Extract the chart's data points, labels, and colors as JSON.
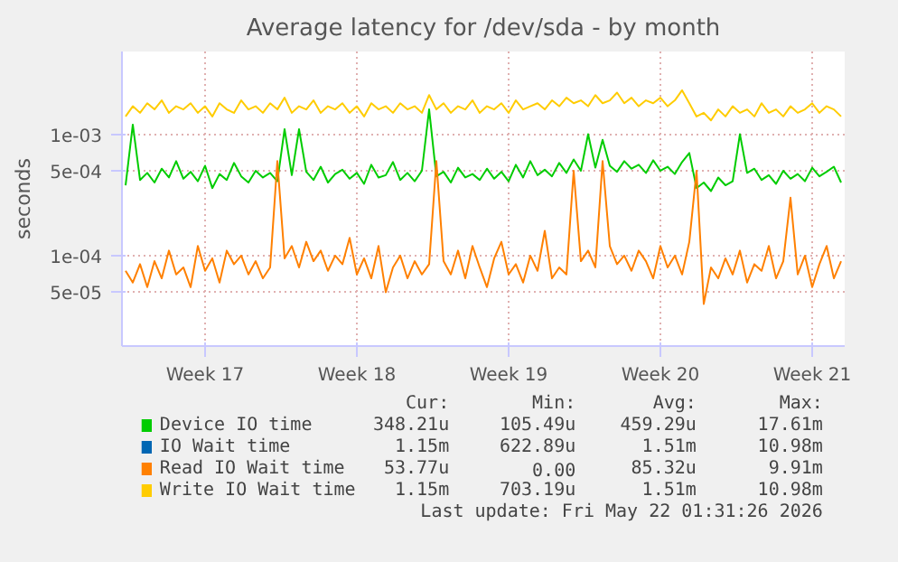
{
  "chart_data": {
    "type": "line",
    "title": "Average latency for /dev/sda - by month",
    "ylabel": "seconds",
    "log": "y",
    "grid": true,
    "legend": "bottom",
    "ylim": [
      1.8e-05,
      0.0048
    ],
    "categories": [
      null,
      null,
      null,
      null,
      null,
      null,
      null,
      null,
      null,
      null,
      null,
      "Week 17",
      null,
      null,
      null,
      null,
      null,
      null,
      null,
      null,
      null,
      null,
      null,
      null,
      null,
      null,
      null,
      null,
      null,
      null,
      null,
      null,
      "Week 18",
      null,
      null,
      null,
      null,
      null,
      null,
      null,
      null,
      null,
      null,
      null,
      null,
      null,
      null,
      null,
      null,
      null,
      null,
      null,
      null,
      "Week 19",
      null,
      null,
      null,
      null,
      null,
      null,
      null,
      null,
      null,
      null,
      null,
      null,
      null,
      null,
      null,
      null,
      null,
      null,
      null,
      null,
      "Week 20",
      null,
      null,
      null,
      null,
      null,
      null,
      null,
      null,
      null,
      null,
      null,
      null,
      null,
      null,
      null,
      null,
      null,
      null,
      null,
      null,
      "Week 21",
      null,
      null,
      null,
      null
    ],
    "yticks": [
      {
        "value": 5e-05,
        "label": "5e-05"
      },
      {
        "value": 0.0001,
        "label": "1e-04"
      },
      {
        "value": 0.0005,
        "label": "5e-04"
      },
      {
        "value": 0.001,
        "label": "1e-03"
      }
    ],
    "series": [
      {
        "name": "Device IO time",
        "color": "#00cc00",
        "values": [
          0.00038,
          0.0012,
          0.00042,
          0.00048,
          0.0004,
          0.00052,
          0.00044,
          0.0006,
          0.00043,
          0.00049,
          0.00041,
          0.00055,
          0.00036,
          0.00047,
          0.00042,
          0.00058,
          0.00045,
          0.0004,
          0.0005,
          0.00044,
          0.00048,
          0.00041,
          0.0011,
          0.00046,
          0.0011,
          0.00049,
          0.00042,
          0.00054,
          0.0004,
          0.00047,
          0.00051,
          0.00043,
          0.00048,
          0.00039,
          0.00056,
          0.00044,
          0.00046,
          0.00059,
          0.00042,
          0.00048,
          0.00041,
          0.0005,
          0.0016,
          0.00045,
          0.00049,
          0.0004,
          0.00053,
          0.00044,
          0.00047,
          0.00042,
          0.00052,
          0.00043,
          0.00049,
          0.00041,
          0.00056,
          0.00044,
          0.0006,
          0.00046,
          0.00051,
          0.00045,
          0.00058,
          0.00048,
          0.00062,
          0.0005,
          0.001,
          0.00053,
          0.0009,
          0.00055,
          0.00049,
          0.0006,
          0.00052,
          0.00056,
          0.00048,
          0.00061,
          0.0005,
          0.00054,
          0.00047,
          0.00059,
          0.0007,
          0.00036,
          0.0004,
          0.00034,
          0.00044,
          0.00038,
          0.00041,
          0.001,
          0.00048,
          0.00052,
          0.00042,
          0.00046,
          0.00039,
          0.0005,
          0.00043,
          0.00047,
          0.00041,
          0.00053,
          0.00045,
          0.00049,
          0.00054,
          0.0004
        ]
      },
      {
        "name": "IO Wait time",
        "color": "#0066b3",
        "values": [
          null,
          null,
          null,
          null,
          null,
          null,
          null,
          null,
          null,
          null,
          null,
          null,
          null,
          null,
          null,
          null,
          null,
          null,
          null,
          null,
          null,
          null,
          null,
          null,
          null,
          null,
          null,
          null,
          null,
          null,
          null,
          null,
          null,
          null,
          null,
          null,
          null,
          null,
          null,
          null,
          null,
          null,
          null,
          null,
          null,
          null,
          null,
          null,
          null,
          null,
          null,
          null,
          null,
          null,
          null,
          null,
          null,
          null,
          null,
          null,
          null,
          null,
          null,
          null,
          null,
          null,
          null,
          null,
          null,
          null,
          null,
          null,
          null,
          null,
          null,
          null,
          null,
          null,
          null,
          null,
          null,
          null,
          null,
          null,
          null,
          null,
          null,
          null,
          null,
          null,
          null,
          null,
          null,
          null,
          null,
          null,
          null,
          null,
          null,
          null
        ]
      },
      {
        "name": "Read IO Wait time",
        "color": "#ff8000",
        "values": [
          7.5e-05,
          6e-05,
          8.5e-05,
          5.5e-05,
          9e-05,
          6.5e-05,
          0.00011,
          7e-05,
          8e-05,
          5.5e-05,
          0.00012,
          7.5e-05,
          9.5e-05,
          6e-05,
          0.00011,
          8.5e-05,
          0.0001,
          7e-05,
          9e-05,
          6.5e-05,
          8e-05,
          0.0006,
          9.5e-05,
          0.00012,
          8e-05,
          0.00013,
          9e-05,
          0.00011,
          7.5e-05,
          0.0001,
          8.5e-05,
          0.00014,
          7e-05,
          9.5e-05,
          6.5e-05,
          0.00012,
          5e-05,
          8e-05,
          0.0001,
          6.5e-05,
          9e-05,
          7e-05,
          8.5e-05,
          0.0006,
          9e-05,
          7e-05,
          0.00011,
          6.5e-05,
          0.00012,
          8e-05,
          5.5e-05,
          9.5e-05,
          0.00013,
          7e-05,
          8.5e-05,
          6e-05,
          0.0001,
          7.5e-05,
          0.00016,
          6.5e-05,
          8e-05,
          7e-05,
          0.0005,
          9e-05,
          0.00011,
          8e-05,
          0.0006,
          0.00012,
          8.5e-05,
          0.0001,
          7.5e-05,
          0.00011,
          9e-05,
          6.5e-05,
          0.00012,
          8e-05,
          0.0001,
          7e-05,
          0.00013,
          0.0005,
          4e-05,
          8e-05,
          6.5e-05,
          9.5e-05,
          7e-05,
          0.00011,
          6e-05,
          8.5e-05,
          7.5e-05,
          0.00012,
          6.5e-05,
          9e-05,
          0.0003,
          7e-05,
          0.0001,
          5.5e-05,
          8.5e-05,
          0.00012,
          6.5e-05,
          9e-05
        ]
      },
      {
        "name": "Write IO Wait time",
        "color": "#ffcc00",
        "values": [
          0.0014,
          0.0017,
          0.0015,
          0.0018,
          0.0016,
          0.0019,
          0.0015,
          0.0017,
          0.0016,
          0.0018,
          0.0015,
          0.0017,
          0.0014,
          0.0018,
          0.0016,
          0.0015,
          0.0019,
          0.0016,
          0.0017,
          0.0015,
          0.0018,
          0.0016,
          0.002,
          0.0015,
          0.0017,
          0.0016,
          0.0019,
          0.0015,
          0.0017,
          0.0016,
          0.0018,
          0.0015,
          0.0017,
          0.0014,
          0.0018,
          0.0016,
          0.0017,
          0.0015,
          0.0018,
          0.0016,
          0.0017,
          0.0015,
          0.0021,
          0.0016,
          0.0018,
          0.0015,
          0.0017,
          0.0016,
          0.0019,
          0.0015,
          0.0017,
          0.0016,
          0.0018,
          0.0015,
          0.0019,
          0.0016,
          0.0017,
          0.0018,
          0.0016,
          0.0019,
          0.0017,
          0.002,
          0.0018,
          0.0019,
          0.0017,
          0.0021,
          0.0018,
          0.0019,
          0.0022,
          0.0018,
          0.002,
          0.0017,
          0.0019,
          0.0018,
          0.002,
          0.0017,
          0.0019,
          0.0023,
          0.0018,
          0.0014,
          0.0015,
          0.0013,
          0.0016,
          0.0014,
          0.0017,
          0.0015,
          0.0016,
          0.0014,
          0.0018,
          0.0015,
          0.0016,
          0.0014,
          0.0017,
          0.0015,
          0.0016,
          0.0018,
          0.0015,
          0.0017,
          0.0016,
          0.0014
        ]
      }
    ],
    "annotations": [
      "Cur:",
      "Min:",
      "Avg:",
      "Max:",
      "348.21u",
      "105.49u",
      "459.29u",
      "17.61m",
      "1.15m",
      "622.89u",
      "1.51m",
      "10.98m",
      "53.77u",
      "0.00",
      "85.32u",
      "9.91m",
      "1.15m",
      "703.19u",
      "1.51m",
      "10.98m",
      "Last update: Fri May 22 01:31:26 2026"
    ]
  }
}
